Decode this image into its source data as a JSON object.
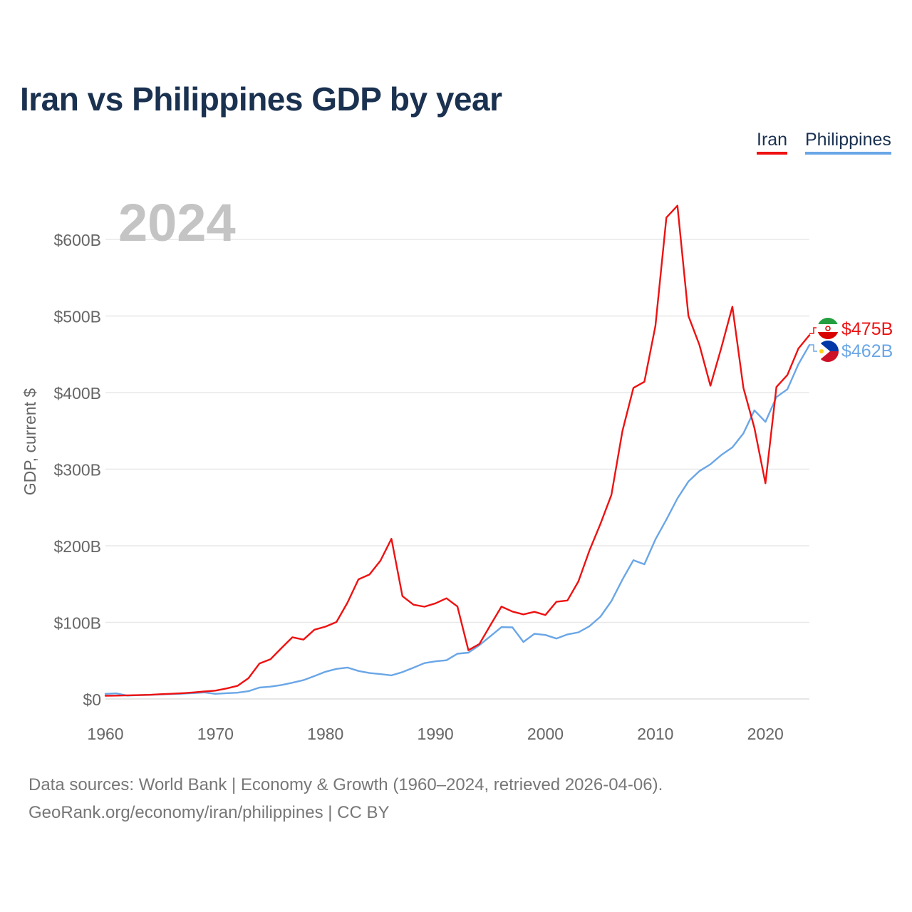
{
  "title": "Iran vs Philippines GDP by year",
  "legend": [
    {
      "label": "Iran",
      "color": "#ee1111"
    },
    {
      "label": "Philippines",
      "color": "#6aa6e6"
    }
  ],
  "year_label": "2024",
  "chart_data": {
    "type": "line",
    "title": "Iran vs Philippines GDP by year",
    "xlabel": "",
    "ylabel": "GDP, current $",
    "xlim": [
      1960,
      2024
    ],
    "ylim": [
      0,
      600
    ],
    "y_unit": "billion USD",
    "x_ticks": [
      1960,
      1970,
      1980,
      1990,
      2000,
      2010,
      2020
    ],
    "y_ticks": [
      0,
      100,
      200,
      300,
      400,
      500,
      600
    ],
    "y_tick_labels": [
      "$0",
      "$100B",
      "$200B",
      "$300B",
      "$400B",
      "$500B",
      "$600B"
    ],
    "x": [
      1960,
      1961,
      1962,
      1963,
      1964,
      1965,
      1966,
      1967,
      1968,
      1969,
      1970,
      1971,
      1972,
      1973,
      1974,
      1975,
      1976,
      1977,
      1978,
      1979,
      1980,
      1981,
      1982,
      1983,
      1984,
      1985,
      1986,
      1987,
      1988,
      1989,
      1990,
      1991,
      1992,
      1993,
      1994,
      1995,
      1996,
      1997,
      1998,
      1999,
      2000,
      2001,
      2002,
      2003,
      2004,
      2005,
      2006,
      2007,
      2008,
      2009,
      2010,
      2011,
      2012,
      2013,
      2014,
      2015,
      2016,
      2017,
      2018,
      2019,
      2020,
      2021,
      2022,
      2023,
      2024
    ],
    "series": [
      {
        "name": "Iran",
        "color": "#ee1111",
        "end_label": "$475B",
        "values": [
          4.2,
          4.4,
          4.7,
          5.0,
          5.4,
          6.2,
          6.8,
          7.5,
          8.6,
          9.8,
          10.9,
          13.7,
          17.1,
          27.1,
          46.2,
          51.8,
          66.4,
          80.6,
          77.5,
          90.4,
          94.4,
          100.5,
          125.6,
          156.2,
          162.4,
          180.5,
          209.1,
          134.2,
          123.1,
          120.5,
          124.8,
          131.4,
          120.7,
          63.6,
          71.8,
          96.4,
          120.6,
          114.1,
          110.4,
          113.8,
          109.6,
          126.9,
          128.6,
          153.5,
          193.9,
          228.6,
          266.3,
          349.9,
          406.1,
          414.1,
          487.1,
          628.6,
          644.0,
          500.1,
          462.3,
          408.9,
          458.9,
          512.2,
          406.1,
          354.0,
          281.6,
          407.3,
          423.0,
          457.6,
          475.0
        ]
      },
      {
        "name": "Philippines",
        "color": "#6aa6e6",
        "end_label": "$462B",
        "values": [
          6.7,
          7.3,
          4.4,
          4.9,
          5.3,
          5.9,
          6.4,
          6.9,
          7.6,
          8.6,
          6.7,
          7.5,
          8.2,
          10.1,
          14.9,
          16.1,
          18.2,
          21.2,
          24.6,
          29.9,
          35.5,
          39.3,
          41.0,
          36.6,
          33.9,
          32.5,
          30.8,
          35.1,
          40.8,
          46.8,
          49.1,
          50.5,
          59.1,
          60.5,
          70.2,
          82.0,
          93.8,
          93.5,
          74.4,
          85.1,
          83.5,
          78.9,
          84.3,
          87.0,
          95.0,
          107.4,
          127.7,
          155.9,
          181.2,
          175.8,
          208.3,
          234.2,
          261.9,
          283.9,
          297.5,
          306.4,
          318.6,
          328.5,
          346.8,
          376.8,
          361.8,
          394.1,
          404.4,
          437.1,
          462.0
        ]
      }
    ]
  },
  "footer": {
    "line1": "Data sources: World Bank | Economy & Growth (1960–2024, retrieved 2026-04-06).",
    "line2": "GeoRank.org/economy/iran/philippines | CC BY"
  }
}
